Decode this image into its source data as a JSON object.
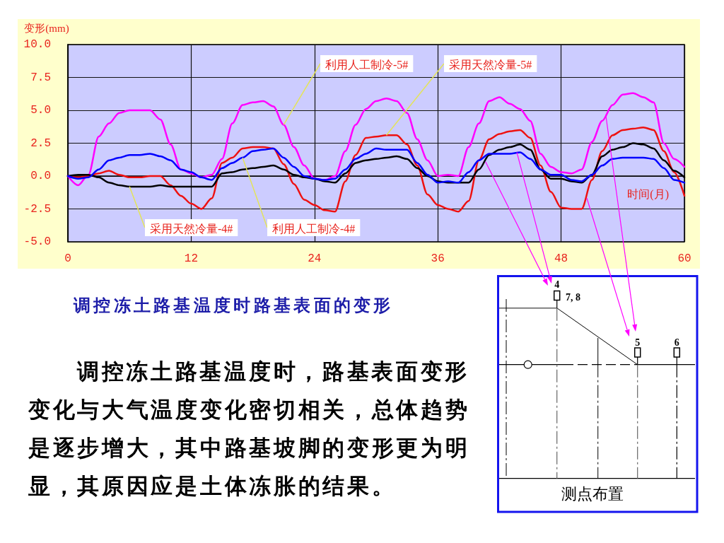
{
  "chart_data": {
    "type": "line",
    "title": "调控冻土路基温度时路基表面的变形",
    "xlabel": "时间(月)",
    "ylabel": "变形(mm)",
    "annotations": [
      "调控冻土路基温度时，路基表面变形变化与大气温度变化密切相关，总体趋势是逐步增大，其中路基坡脚的变形更为明显，其原因应是土体冻胀的结果。",
      "4",
      "7, 8",
      "5",
      "6",
      "测点布置"
    ],
    "x": [
      0,
      1,
      2,
      3,
      4,
      5,
      6,
      7,
      8,
      9,
      10,
      11,
      12,
      13,
      14,
      15,
      16,
      17,
      18,
      19,
      20,
      21,
      22,
      23,
      24,
      25,
      26,
      27,
      28,
      29,
      30,
      31,
      32,
      33,
      34,
      35,
      36,
      37,
      38,
      39,
      40,
      41,
      42,
      43,
      44,
      45,
      46,
      47,
      48,
      49,
      50,
      51,
      52,
      53,
      54,
      55,
      56,
      57,
      58,
      59,
      60
    ],
    "series": [
      {
        "name": "利用人工制冷-5#",
        "color": "#ff00ff",
        "values": [
          0,
          -0.7,
          0.1,
          3.0,
          4.0,
          4.8,
          5.0,
          5.0,
          5.0,
          4.3,
          2.4,
          0.5,
          0.2,
          -0.1,
          0.1,
          1.3,
          4.0,
          5.4,
          5.6,
          5.7,
          5.3,
          3.9,
          2.2,
          0.8,
          -0.2,
          -0.3,
          0.0,
          1.9,
          3.9,
          5.1,
          5.7,
          5.9,
          5.7,
          4.8,
          2.8,
          1.2,
          0.0,
          0.1,
          0.0,
          2.2,
          4.0,
          5.7,
          6.0,
          5.5,
          5.1,
          4.2,
          1.7,
          0.7,
          0.3,
          0.2,
          0.5,
          2.6,
          4.2,
          5.4,
          6.2,
          6.3,
          6.0,
          5.6,
          2.5,
          1.3,
          0.7
        ]
      },
      {
        "name": "采用天然冷量-5#",
        "color": "#ee1111",
        "values": [
          0,
          -0.1,
          0.0,
          0.2,
          0.4,
          0.1,
          -0.1,
          -0.1,
          0.0,
          0.0,
          -0.7,
          -1.5,
          -2.1,
          -2.5,
          -1.7,
          1.0,
          1.4,
          2.1,
          2.2,
          2.2,
          2.1,
          0.9,
          -0.6,
          -1.8,
          -2.2,
          -2.6,
          -2.7,
          -0.4,
          1.6,
          2.9,
          3.0,
          3.1,
          3.1,
          2.4,
          0.8,
          -1.4,
          -2.2,
          -2.5,
          -2.7,
          -1.9,
          1.2,
          2.8,
          3.2,
          3.4,
          3.5,
          2.9,
          0.8,
          -1.2,
          -2.4,
          -2.5,
          -2.5,
          -0.3,
          1.9,
          3.1,
          3.5,
          3.6,
          3.7,
          3.5,
          1.9,
          0.3,
          -1.5
        ]
      },
      {
        "name": "采用天然冷量-4#",
        "color": "#000000",
        "values": [
          0.0,
          0.1,
          0.1,
          -0.1,
          -0.5,
          -0.7,
          -0.8,
          -0.8,
          -0.8,
          -0.7,
          -0.8,
          -0.8,
          -0.8,
          -0.8,
          -0.8,
          0.2,
          0.3,
          0.5,
          0.6,
          0.7,
          0.8,
          0.5,
          0.1,
          -0.1,
          -0.2,
          -0.4,
          -0.5,
          0.2,
          1.0,
          1.2,
          1.3,
          1.4,
          1.5,
          1.3,
          0.6,
          0.0,
          -0.4,
          -0.5,
          -0.5,
          -0.5,
          0.5,
          1.6,
          2.0,
          2.2,
          2.4,
          2.0,
          0.5,
          -0.2,
          -0.2,
          -0.4,
          -0.5,
          0.1,
          1.5,
          2.0,
          2.2,
          2.5,
          2.4,
          2.1,
          1.2,
          0.4,
          -0.1
        ]
      },
      {
        "name": "利用人工制冷-4#",
        "color": "#0000ff",
        "values": [
          0.0,
          -0.2,
          -0.1,
          0.5,
          1.2,
          1.4,
          1.6,
          1.6,
          1.7,
          1.5,
          1.2,
          0.5,
          0.3,
          -0.1,
          -0.3,
          0.6,
          1.0,
          1.4,
          1.9,
          2.0,
          2.1,
          1.4,
          0.7,
          0.0,
          -0.2,
          -0.3,
          -0.2,
          0.5,
          1.3,
          1.7,
          2.1,
          2.0,
          2.0,
          2.0,
          1.0,
          0.1,
          -0.5,
          -0.4,
          -0.5,
          0.3,
          1.2,
          1.7,
          1.7,
          1.7,
          1.8,
          1.3,
          0.5,
          0.1,
          0.1,
          -0.3,
          -0.4,
          0.1,
          0.8,
          1.3,
          1.4,
          1.4,
          1.4,
          1.3,
          0.6,
          -0.3,
          -0.5
        ]
      }
    ],
    "xlim": [
      0,
      60
    ],
    "xticks": [
      0,
      12,
      24,
      36,
      48,
      60
    ],
    "ylim": [
      -5,
      10
    ],
    "yticks": [
      {
        "value": -5,
        "label": "-5.0"
      },
      -2.5,
      {
        "value": 0,
        "label": "0.0"
      },
      2.5,
      {
        "value": 5,
        "label": "5.0"
      },
      7.5,
      {
        "value": 10,
        "label": "10.0"
      }
    ],
    "grid": true
  }
}
